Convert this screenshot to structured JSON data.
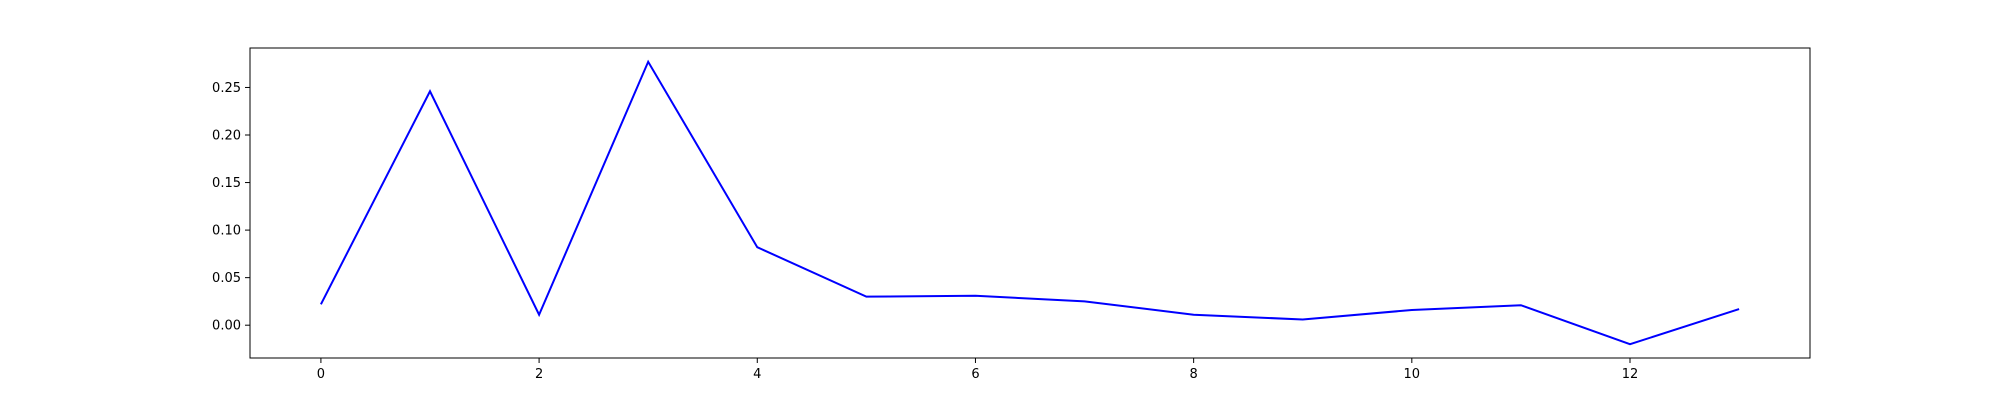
{
  "chart_data": {
    "type": "line",
    "title": "",
    "xlabel": "",
    "ylabel": "",
    "x": [
      0,
      1,
      2,
      3,
      4,
      5,
      6,
      7,
      8,
      9,
      10,
      11,
      12,
      13
    ],
    "series": [
      {
        "color": "#0000ff",
        "values": [
          0.022,
          0.246,
          0.011,
          0.277,
          0.082,
          0.03,
          0.031,
          0.025,
          0.011,
          0.006,
          0.016,
          0.021,
          -0.02,
          0.017
        ]
      }
    ],
    "xlim": [
      -0.65,
      13.65
    ],
    "ylim": [
      -0.0345,
      0.2915
    ],
    "x_ticks": [
      0,
      2,
      4,
      6,
      8,
      10,
      12
    ],
    "x_tick_labels": [
      "0",
      "2",
      "4",
      "6",
      "8",
      "10",
      "12"
    ],
    "y_ticks": [
      0.0,
      0.05,
      0.1,
      0.15,
      0.2,
      0.25
    ],
    "y_tick_labels": [
      "0.00",
      "0.05",
      "0.10",
      "0.15",
      "0.20",
      "0.25"
    ],
    "grid": false,
    "legend": "none"
  }
}
